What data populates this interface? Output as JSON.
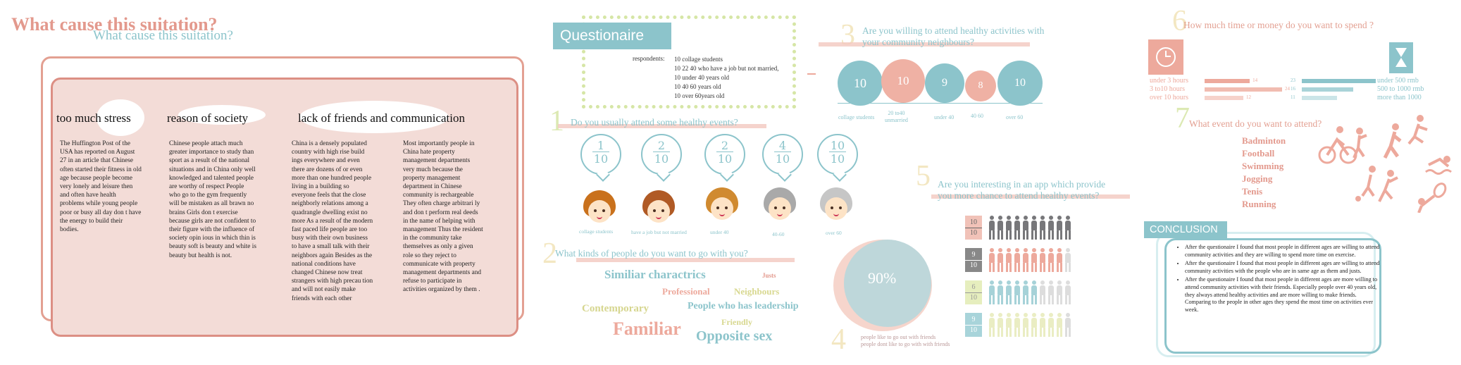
{
  "panel1": {
    "title": "What cause this suitation?",
    "subtitle": "What cause this suitation?",
    "headings": [
      "too much stress",
      "reason of society",
      "lack of friends and communication"
    ],
    "col1": "The Huffington Post of the USA has reported on August 27 in an article that Chinese often started their fitness in old age because people become very lonely and leisure then and often have health problems  while young people  poor or busy all day  don t have the energy to build their bodies.",
    "col2": "Chinese people attach much greater importance to study than sport as a result of the national situations  and in China  only well knowledged and talented people are worthy of respect  People who go to the gym frequently will be mistaken as all brawn no brains  Girls don t exercise because girls are not confident to their figure with the influence of society opin ious  in which thin is beauty soft is beauty and white is beauty but health is not.",
    "col3": "China is a densely populated country with high rise build ings everywhere  and even there are dozens of or even more than one hundred people living in a building  so everyone feels that the close neighborly relations among a quadrangle dwelling exist no more As a result of the modern fast paced life  people are too busy with their own business to have a small talk with their neighbors  again  Besides  as the national conditions have changed  Chinese now treat strangers with high precau tion and will not easily make friends with each other",
    "col4": "Most importantly  people in China hate    property management departments very much  because the property management department in Chinese community is rechargeable  They often charge arbitrari ly and don t perform real deeds in the name of helping with management  Thus  the resident in the community take themselves as only a   given   role  so they reject to communicate with property management departments and refuse to participate in activities organized by them ."
  },
  "questionnaire": {
    "title": "Questionaire",
    "respondents_label": "respondents:",
    "respondents": [
      "10 collage students",
      "10 22 40 who have a job but not married,",
      "10 under 40 years old",
      "10 40 60 years old",
      "10 over 60years old"
    ]
  },
  "q1": {
    "number": "1",
    "question": "Do you usually attend some healthy events?",
    "bubbles": [
      {
        "num": "1",
        "den": "10",
        "label": "collage students"
      },
      {
        "num": "2",
        "den": "10",
        "label": "have a job but not married"
      },
      {
        "num": "2",
        "den": "10",
        "label": "under 40"
      },
      {
        "num": "4",
        "den": "10",
        "label": "40-60"
      },
      {
        "num": "10",
        "den": "10",
        "label": "over 60"
      }
    ]
  },
  "q2": {
    "number": "2",
    "question": "What kinds of people do you want to go with you?",
    "words": [
      "Similiar charactrics",
      "Justs",
      "Professional",
      "Neighbours",
      "Contemporary",
      "People who has leadership",
      "Friendly",
      "Familiar",
      "Opposite sex"
    ]
  },
  "q3": {
    "number": "3",
    "question_line1": "Are you willing to attend healthy activities with",
    "question_line2": "your community neighbours?",
    "circles": [
      {
        "value": "10",
        "label": "collage students",
        "color": "#8cc4cb"
      },
      {
        "value": "10",
        "label": "20 to40\nunmarried",
        "color": "#efb1a4"
      },
      {
        "value": "9",
        "label": "under 40",
        "color": "#8cc4cb"
      },
      {
        "value": "8",
        "label": "40  60",
        "color": "#efb1a4"
      },
      {
        "value": "10",
        "label": "over 60",
        "color": "#8cc4cb"
      }
    ]
  },
  "q4": {
    "number": "4",
    "percent": "90%",
    "legend": [
      "people like to go out with friends",
      "people dont like to go with with friends"
    ]
  },
  "q5": {
    "number": "5",
    "question_line1": "Are you interesting in an app which provide",
    "question_line2": "you more chance to attend healthy events?",
    "rows": [
      {
        "num": "10",
        "den": "10",
        "count": 10,
        "color": "#77777a",
        "badge": "#f1c2b8",
        "text": "#666"
      },
      {
        "num": "9",
        "den": "10",
        "count": 9,
        "color": "#eda99c",
        "badge": "#888888",
        "text": "#fff"
      },
      {
        "num": "6",
        "den": "10",
        "count": 6,
        "color": "#a6d2d8",
        "badge": "#e6eebe",
        "text": "#999"
      },
      {
        "num": "9",
        "den": "10",
        "count": 9,
        "color": "#eaedc3",
        "badge": "#a8d4da",
        "text": "#fff"
      }
    ]
  },
  "q6": {
    "number": "6",
    "question": "How much time or money do you want to spend ?",
    "time_labels": [
      "under 3 hours",
      "3 to10 hours",
      "over 10 hours"
    ],
    "time_values": [
      "14",
      "24",
      "12"
    ],
    "money_labels": [
      "under 500 rmb",
      "500 to 1000 rmb",
      "more than 1000"
    ],
    "money_values": [
      "23",
      "16",
      "11"
    ]
  },
  "q7": {
    "number": "7",
    "question": "What event do you want to attend?",
    "events": [
      "Badminton",
      "Football",
      "Swimming",
      "Jogging",
      "Tenis",
      "Running"
    ]
  },
  "conclusion": {
    "title": "CONCLUSION",
    "items": [
      "After the questionaire  I found that most people in different ages are willing to attend community activities  and they are willing to spend more time on exercise.",
      "After the questionaire  I found that most people in different ages are willing to attend community activities with the people who are in same age as them and justs.",
      "After the questionaire  I found that most people in different ages are more willing to attend community activities with their friends. Especially people over 40 years old, they always attend healthy activities and are more willing to make friends. Comparing to the people in other ages  they spend the most time on activities ever week."
    ]
  },
  "colors": {
    "teal": "#8cc4cb",
    "pink": "#e3998d",
    "light_pink": "#f3dcd7",
    "lime": "#d6e6a6"
  }
}
